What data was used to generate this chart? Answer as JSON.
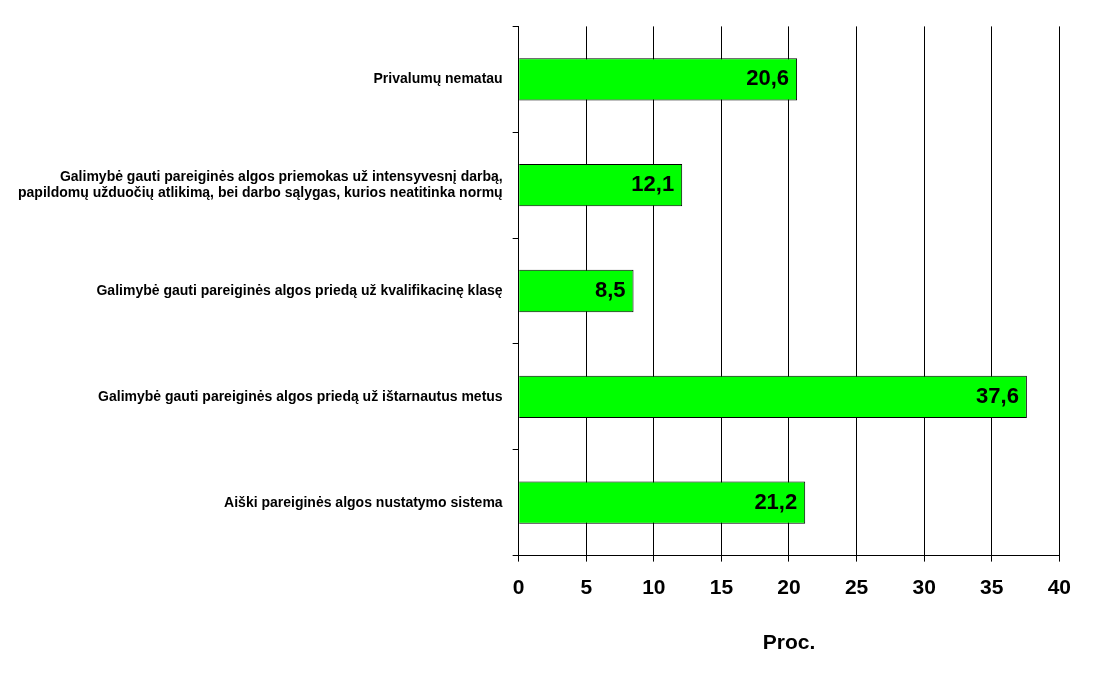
{
  "chart_data": {
    "type": "bar",
    "orientation": "horizontal",
    "xlabel": "Proc.",
    "categories": [
      "Privalumų nematau",
      "Galimybė gauti pareiginės algos priemokas už intensyvesnį darbą, papildomų užduočių atlikimą, bei darbo sąlygas, kurios neatitinka normų",
      "Galimybė gauti pareiginės algos priedą už kvalifikacinę klasę",
      "Galimybė gauti pareiginės algos priedą už ištarnautus metus",
      "Aiški pareiginės algos nustatymo sistema"
    ],
    "values": [
      20.6,
      12.1,
      8.5,
      37.6,
      21.2
    ],
    "color": "#00ff00",
    "xlim": [
      0,
      40
    ],
    "xticks": [
      0,
      5,
      10,
      15,
      20,
      25,
      30,
      35,
      40
    ],
    "value_labels": [
      "20,6",
      "12,1",
      "8,5",
      "37,6",
      "21,2"
    ],
    "grid": "x",
    "legend": false
  }
}
